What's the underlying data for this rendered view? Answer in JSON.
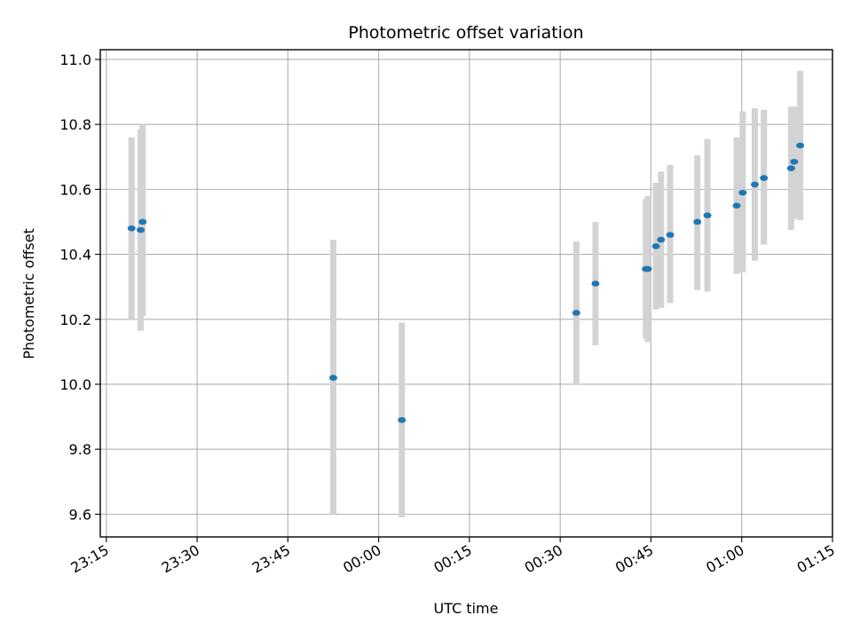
{
  "chart_data": {
    "type": "scatter",
    "title": "Photometric offset variation",
    "xlabel": "UTC time",
    "ylabel": "Photometric offset",
    "x_unit": "UTC time",
    "x_ticks": [
      "23:15",
      "23:30",
      "23:45",
      "00:00",
      "00:15",
      "00:30",
      "00:45",
      "01:00",
      "01:15"
    ],
    "xlim": [
      "23:14",
      "01:15"
    ],
    "ylim": [
      9.53,
      11.03
    ],
    "y_ticks": [
      9.6,
      9.8,
      10.0,
      10.2,
      10.4,
      10.6,
      10.8,
      11.0
    ],
    "grid": true,
    "marker_color": "#1f77b4",
    "errorbar_color": "#d3d3d3",
    "points": [
      {
        "x": "23:19:10",
        "y": 10.48,
        "ylo": 10.2,
        "yhi": 10.76
      },
      {
        "x": "23:20:40",
        "y": 10.475,
        "ylo": 10.165,
        "yhi": 10.785
      },
      {
        "x": "23:21:00",
        "y": 10.5,
        "ylo": 10.21,
        "yhi": 10.8
      },
      {
        "x": "23:52:30",
        "y": 10.02,
        "ylo": 9.6,
        "yhi": 10.445
      },
      {
        "x": "00:03:50",
        "y": 9.89,
        "ylo": 9.59,
        "yhi": 10.19
      },
      {
        "x": "00:32:40",
        "y": 10.22,
        "ylo": 10.0,
        "yhi": 10.44
      },
      {
        "x": "00:35:50",
        "y": 10.31,
        "ylo": 10.12,
        "yhi": 10.5
      },
      {
        "x": "00:44:10",
        "y": 10.355,
        "ylo": 10.14,
        "yhi": 10.57
      },
      {
        "x": "00:44:30",
        "y": 10.355,
        "ylo": 10.13,
        "yhi": 10.58
      },
      {
        "x": "00:45:50",
        "y": 10.425,
        "ylo": 10.23,
        "yhi": 10.62
      },
      {
        "x": "00:46:40",
        "y": 10.445,
        "ylo": 10.235,
        "yhi": 10.655
      },
      {
        "x": "00:48:10",
        "y": 10.46,
        "ylo": 10.25,
        "yhi": 10.675
      },
      {
        "x": "00:52:40",
        "y": 10.5,
        "ylo": 10.29,
        "yhi": 10.705
      },
      {
        "x": "00:54:20",
        "y": 10.52,
        "ylo": 10.285,
        "yhi": 10.755
      },
      {
        "x": "00:59:10",
        "y": 10.55,
        "ylo": 10.34,
        "yhi": 10.76
      },
      {
        "x": "01:00:10",
        "y": 10.59,
        "ylo": 10.345,
        "yhi": 10.84
      },
      {
        "x": "01:02:10",
        "y": 10.615,
        "ylo": 10.38,
        "yhi": 10.85
      },
      {
        "x": "01:03:40",
        "y": 10.635,
        "ylo": 10.43,
        "yhi": 10.845
      },
      {
        "x": "01:08:10",
        "y": 10.665,
        "ylo": 10.475,
        "yhi": 10.855
      },
      {
        "x": "01:08:40",
        "y": 10.685,
        "ylo": 10.51,
        "yhi": 10.855
      },
      {
        "x": "01:09:40",
        "y": 10.735,
        "ylo": 10.505,
        "yhi": 10.965
      }
    ]
  }
}
